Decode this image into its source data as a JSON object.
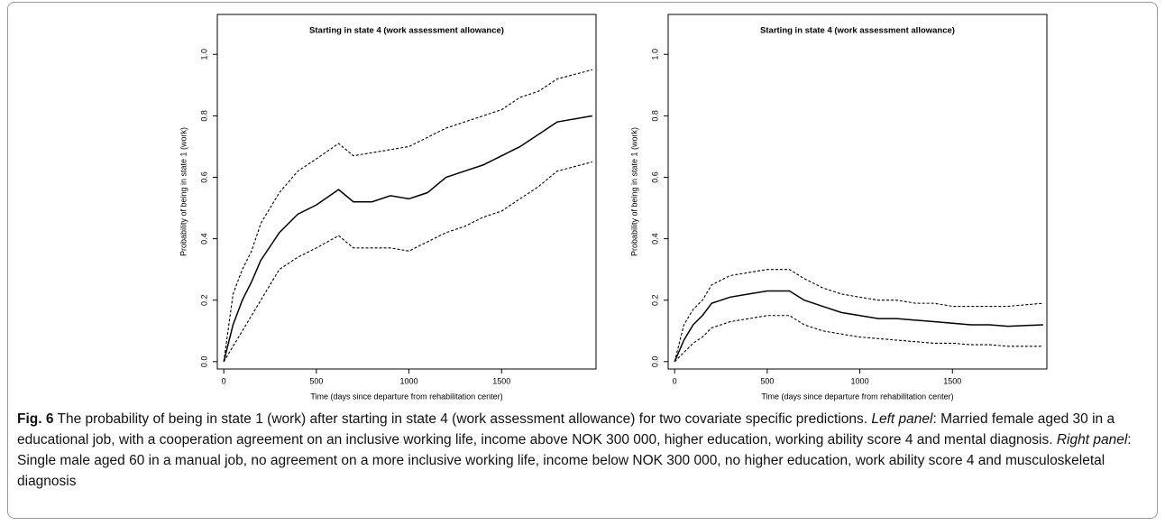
{
  "chart_data": [
    {
      "type": "line",
      "title": "Starting in state 4 (work assessment allowance)",
      "x_label": "Time (days since departure from rehabilitation center)",
      "y_label": "Probability of being in state 1 (work)",
      "x": [
        0,
        50,
        100,
        150,
        200,
        300,
        400,
        500,
        620,
        700,
        800,
        900,
        1000,
        1100,
        1200,
        1300,
        1400,
        1500,
        1600,
        1700,
        1800,
        1990
      ],
      "series": [
        {
          "color": "#000000",
          "style": "solid",
          "values": [
            0,
            0.12,
            0.2,
            0.26,
            0.33,
            0.42,
            0.48,
            0.51,
            0.56,
            0.52,
            0.52,
            0.54,
            0.53,
            0.55,
            0.6,
            0.62,
            0.64,
            0.67,
            0.7,
            0.74,
            0.78,
            0.8
          ]
        },
        {
          "color": "#000000",
          "style": "dashed",
          "values": [
            0,
            0.22,
            0.3,
            0.36,
            0.45,
            0.55,
            0.62,
            0.66,
            0.71,
            0.67,
            0.68,
            0.69,
            0.7,
            0.73,
            0.76,
            0.78,
            0.8,
            0.82,
            0.86,
            0.88,
            0.92,
            0.95
          ]
        },
        {
          "color": "#000000",
          "style": "dashed",
          "values": [
            0,
            0.05,
            0.1,
            0.15,
            0.2,
            0.3,
            0.34,
            0.37,
            0.41,
            0.37,
            0.37,
            0.37,
            0.36,
            0.39,
            0.42,
            0.44,
            0.47,
            0.49,
            0.53,
            0.57,
            0.62,
            0.65
          ]
        }
      ],
      "xlim": [
        -35,
        2010
      ],
      "ylim": [
        -0.024,
        1.13
      ],
      "xticks": [
        0,
        500,
        1000,
        1500
      ],
      "yticks": [
        {
          "value": 0,
          "label": "0.0"
        },
        {
          "value": 0.2,
          "label": "0.2"
        },
        {
          "value": 0.4,
          "label": "0.4"
        },
        {
          "value": 0.6,
          "label": "0.6"
        },
        {
          "value": 0.8,
          "label": "0.8"
        },
        {
          "value": 1,
          "label": "1.0"
        }
      ],
      "grid": false
    },
    {
      "type": "line",
      "title": "Starting in state 4 (work assessment allowance)",
      "x_label": "Time (days since departure from rehabilitation center)",
      "y_label": "Probability of being in state 1 (work)",
      "x": [
        0,
        50,
        100,
        150,
        200,
        300,
        400,
        500,
        620,
        700,
        800,
        900,
        1000,
        1100,
        1200,
        1300,
        1400,
        1500,
        1600,
        1700,
        1800,
        1990
      ],
      "series": [
        {
          "color": "#000000",
          "style": "solid",
          "values": [
            0,
            0.07,
            0.12,
            0.15,
            0.19,
            0.21,
            0.22,
            0.23,
            0.23,
            0.2,
            0.18,
            0.16,
            0.15,
            0.14,
            0.14,
            0.135,
            0.13,
            0.125,
            0.12,
            0.12,
            0.115,
            0.12
          ]
        },
        {
          "color": "#000000",
          "style": "dashed",
          "values": [
            0,
            0.12,
            0.17,
            0.2,
            0.25,
            0.28,
            0.29,
            0.3,
            0.3,
            0.27,
            0.24,
            0.22,
            0.21,
            0.2,
            0.2,
            0.19,
            0.19,
            0.18,
            0.18,
            0.18,
            0.18,
            0.19
          ]
        },
        {
          "color": "#000000",
          "style": "dashed",
          "values": [
            0,
            0.03,
            0.06,
            0.08,
            0.11,
            0.13,
            0.14,
            0.15,
            0.15,
            0.12,
            0.1,
            0.09,
            0.08,
            0.075,
            0.07,
            0.065,
            0.06,
            0.06,
            0.055,
            0.055,
            0.05,
            0.05
          ]
        }
      ],
      "xlim": [
        -35,
        2010
      ],
      "ylim": [
        -0.024,
        1.13
      ],
      "xticks": [
        0,
        500,
        1000,
        1500
      ],
      "yticks": [
        {
          "value": 0,
          "label": "0.0"
        },
        {
          "value": 0.2,
          "label": "0.2"
        },
        {
          "value": 0.4,
          "label": "0.4"
        },
        {
          "value": 0.6,
          "label": "0.6"
        },
        {
          "value": 0.8,
          "label": "0.8"
        },
        {
          "value": 1,
          "label": "1.0"
        }
      ],
      "grid": false
    }
  ],
  "caption": {
    "label": "Fig. 6",
    "text": " The probability of being in state 1 (work) after starting in state 4 (work assessment allowance) for two covariate specific predictions. ",
    "left_label": "Left panel",
    "left_text": ": Married female aged 30 in a educational job, with a cooperation agreement on an inclusive working life, income above NOK 300 000, higher education, working ability score 4 and mental diagnosis. ",
    "right_label": "Right panel",
    "right_text": ": Single male aged 60 in a manual job, no agreement on a more inclusive working life, income below NOK 300 000, no higher education, work ability score 4 and musculoskeletal diagnosis"
  }
}
